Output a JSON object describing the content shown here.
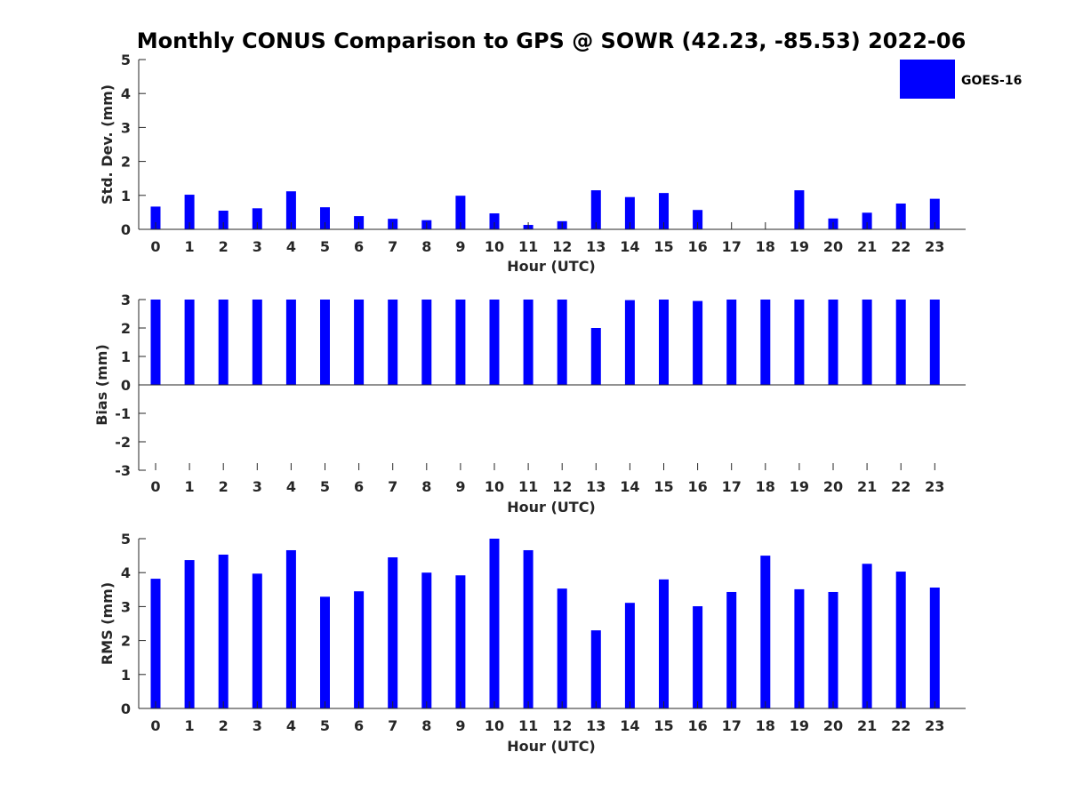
{
  "chart_data": {
    "title": "Monthly CONUS Comparison to GPS @ SOWR (42.23, -85.53) 2022-06",
    "type": "bar",
    "legend": {
      "entries": [
        "GOES-16"
      ],
      "placement": "top-right"
    },
    "colors": {
      "series": "#0000ff",
      "axis": "#262626"
    },
    "panels": [
      {
        "type": "bar",
        "xlabel": "Hour (UTC)",
        "ylabel": "Std. Dev. (mm)",
        "ylim": [
          0,
          5
        ],
        "yticks": [
          "0",
          "1",
          "2",
          "3",
          "4",
          "5"
        ],
        "categories": [
          "0",
          "1",
          "2",
          "3",
          "4",
          "5",
          "6",
          "7",
          "8",
          "9",
          "10",
          "11",
          "12",
          "13",
          "14",
          "15",
          "16",
          "17",
          "18",
          "19",
          "20",
          "21",
          "22",
          "23"
        ],
        "series": [
          {
            "name": "GOES-16",
            "values": [
              0.67,
              1.02,
              0.55,
              0.62,
              1.12,
              0.65,
              0.39,
              0.31,
              0.27,
              0.99,
              0.47,
              0.13,
              0.24,
              1.15,
              0.95,
              1.07,
              0.57,
              0.0,
              0.0,
              1.15,
              0.32,
              0.49,
              0.76,
              0.9
            ]
          }
        ]
      },
      {
        "type": "bar",
        "xlabel": "Hour (UTC)",
        "ylabel": "Bias (mm)",
        "ylim": [
          -3,
          3
        ],
        "yticks": [
          "-3",
          "-2",
          "-1",
          "0",
          "1",
          "2",
          "3"
        ],
        "categories": [
          "0",
          "1",
          "2",
          "3",
          "4",
          "5",
          "6",
          "7",
          "8",
          "9",
          "10",
          "11",
          "12",
          "13",
          "14",
          "15",
          "16",
          "17",
          "18",
          "19",
          "20",
          "21",
          "22",
          "23"
        ],
        "series": [
          {
            "name": "GOES-16",
            "values": [
              3.0,
              3.0,
              3.0,
              3.0,
              3.0,
              3.0,
              3.0,
              3.0,
              3.0,
              3.0,
              3.0,
              3.0,
              3.0,
              2.0,
              2.98,
              3.0,
              2.95,
              3.0,
              3.0,
              3.0,
              3.0,
              3.0,
              3.0,
              3.0
            ]
          }
        ]
      },
      {
        "type": "bar",
        "xlabel": "Hour (UTC)",
        "ylabel": "RMS (mm)",
        "ylim": [
          0,
          5
        ],
        "yticks": [
          "0",
          "1",
          "2",
          "3",
          "4",
          "5"
        ],
        "categories": [
          "0",
          "1",
          "2",
          "3",
          "4",
          "5",
          "6",
          "7",
          "8",
          "9",
          "10",
          "11",
          "12",
          "13",
          "14",
          "15",
          "16",
          "17",
          "18",
          "19",
          "20",
          "21",
          "22",
          "23"
        ],
        "series": [
          {
            "name": "GOES-16",
            "values": [
              3.82,
              4.37,
              4.53,
              3.97,
              4.66,
              3.29,
              3.45,
              4.45,
              4.0,
              3.92,
              5.0,
              4.66,
              3.53,
              2.3,
              3.11,
              3.8,
              3.01,
              3.43,
              4.5,
              3.51,
              3.43,
              4.26,
              4.03,
              3.56
            ]
          }
        ]
      }
    ]
  }
}
